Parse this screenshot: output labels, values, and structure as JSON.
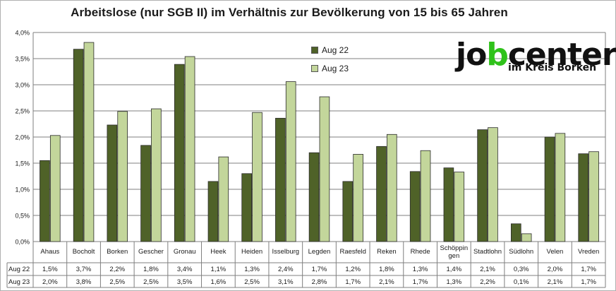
{
  "chart_data": {
    "type": "bar",
    "title": "Arbeitslose (nur SGB II) im Verhältnis zur Bevölkerung von 15 bis 65 Jahren",
    "categories": [
      "Ahaus",
      "Bocholt",
      "Borken",
      "Gescher",
      "Gronau",
      "Heek",
      "Heiden",
      "Isselburg",
      "Legden",
      "Raesfeld",
      "Reken",
      "Rhede",
      "Schöppin gen",
      "Stadtlohn",
      "Südlohn",
      "Velen",
      "Vreden"
    ],
    "series": [
      {
        "name": "Aug 22",
        "color": "#4f6228",
        "values": [
          1.55,
          3.68,
          2.23,
          1.84,
          3.39,
          1.15,
          1.3,
          2.36,
          1.7,
          1.15,
          1.82,
          1.34,
          1.41,
          2.14,
          0.34,
          2.0,
          1.68
        ],
        "labels": [
          "1,5%",
          "3,7%",
          "2,2%",
          "1,8%",
          "3,4%",
          "1,1%",
          "1,3%",
          "2,4%",
          "1,7%",
          "1,2%",
          "1,8%",
          "1,3%",
          "1,4%",
          "2,1%",
          "0,3%",
          "2,0%",
          "1,7%"
        ]
      },
      {
        "name": "Aug 23",
        "color": "#c3d69b",
        "values": [
          2.03,
          3.81,
          2.49,
          2.54,
          3.54,
          1.62,
          2.47,
          3.06,
          2.77,
          1.67,
          2.05,
          1.74,
          1.33,
          2.18,
          0.15,
          2.07,
          1.72
        ],
        "labels": [
          "2,0%",
          "3,8%",
          "2,5%",
          "2,5%",
          "3,5%",
          "1,6%",
          "2,5%",
          "3,1%",
          "2,8%",
          "1,7%",
          "2,1%",
          "1,7%",
          "1,3%",
          "2,2%",
          "0,1%",
          "2,1%",
          "1,7%"
        ]
      }
    ],
    "ylim": [
      0,
      4.0
    ],
    "yticks": [
      0,
      0.5,
      1.0,
      1.5,
      2.0,
      2.5,
      3.0,
      3.5,
      4.0
    ],
    "ytick_labels": [
      "0,0%",
      "0,5%",
      "1,0%",
      "1,5%",
      "2,0%",
      "2,5%",
      "3,0%",
      "3,5%",
      "4,0%"
    ],
    "grid": true,
    "legend_position": "top-center",
    "data_table": true
  },
  "logo": {
    "main_pre": "jo",
    "main_accent": "b",
    "main_post": "center",
    "sub": "im Kreis Borken"
  }
}
